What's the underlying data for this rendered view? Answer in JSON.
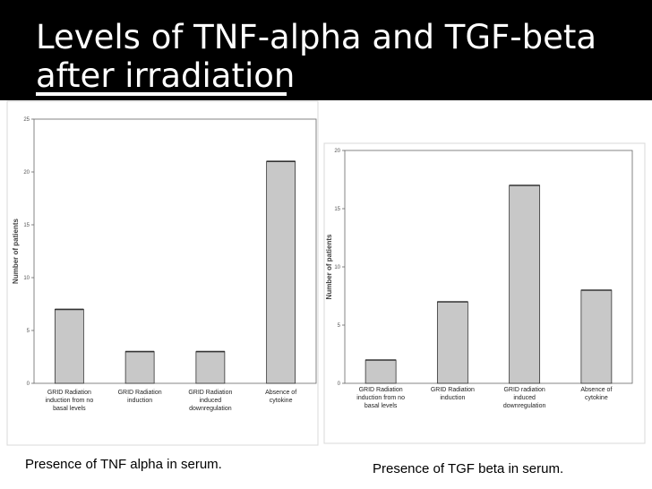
{
  "slide": {
    "title": "Levels of TNF-alpha and TGF-beta\nafter irradiation",
    "colors": {
      "band": "#000000",
      "title": "#ffffff",
      "bar": "#c8c8c8",
      "bar_edge": "#333333",
      "axis": "#666666"
    }
  },
  "captions": {
    "left": "Presence of TNF alpha in serum.",
    "right": "Presence of TGF beta in serum."
  },
  "chart_data": [
    {
      "type": "bar",
      "title": "",
      "xlabel": "",
      "ylabel": "Number of patients",
      "ylim": [
        0,
        25
      ],
      "yticks": [
        0,
        5,
        10,
        15,
        20,
        25
      ],
      "categories": [
        "GRID Radiation\ninduction from no\nbasal levels",
        "GRID Radiation\ninduction",
        "GRID Radiation\ninduced\ndownregulation",
        "Absence of\ncytokine"
      ],
      "values": [
        7,
        3,
        3,
        21
      ],
      "grid": false,
      "legend": "none"
    },
    {
      "type": "bar",
      "title": "",
      "xlabel": "",
      "ylabel": "Number of patients",
      "ylim": [
        0,
        20
      ],
      "yticks": [
        0,
        5,
        10,
        15,
        20
      ],
      "categories": [
        "GRID Radiation\ninduction from no\nbasal levels",
        "GRID Radiation\ninduction",
        "GRID radiation\ninduced\ndownregulation",
        "Absence of\ncytokine"
      ],
      "values": [
        2,
        7,
        17,
        8
      ],
      "grid": false,
      "legend": "none"
    }
  ]
}
